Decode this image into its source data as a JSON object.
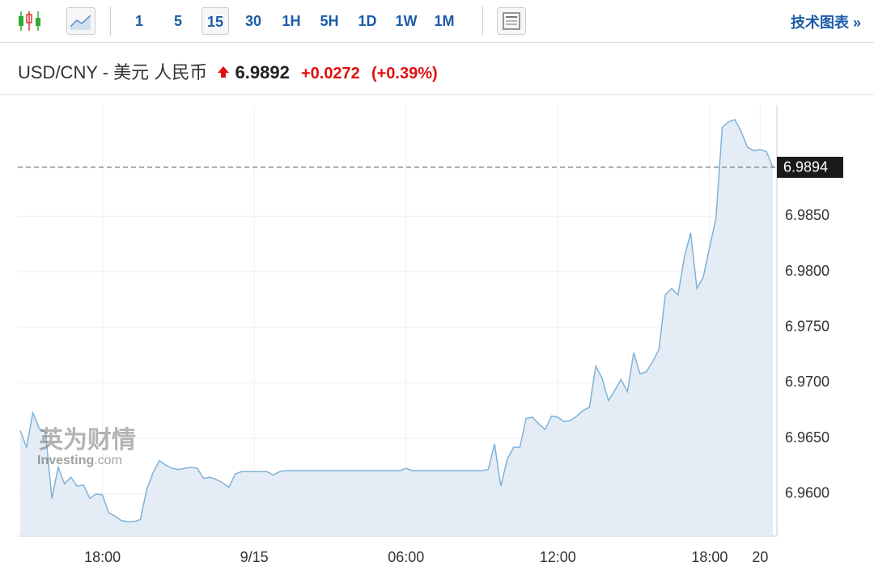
{
  "toolbar": {
    "intervals": [
      "1",
      "5",
      "15",
      "30",
      "1H",
      "5H",
      "1D",
      "1W",
      "1M"
    ],
    "selected": "15",
    "link": "技术图表 »"
  },
  "header": {
    "pair": "USD/CNY - 美元 人民币",
    "price": "6.9892",
    "change": "+0.0272",
    "change_pct": "(+0.39%)"
  },
  "watermark": {
    "brand": "英为财情",
    "site": "Investing",
    "domain": ".com"
  },
  "chart_data": {
    "type": "area",
    "color": "#7fb2d8",
    "fill": "#e4edf6",
    "values": [
      6.9657,
      6.9642,
      6.9673,
      6.9659,
      6.9655,
      6.9596,
      6.9624,
      6.9609,
      6.9615,
      6.9607,
      6.9608,
      6.9596,
      6.96,
      6.9599,
      6.9583,
      6.958,
      6.9576,
      6.9575,
      6.9575,
      6.9577,
      6.9604,
      6.9619,
      6.963,
      6.9626,
      6.9623,
      6.9622,
      6.9623,
      6.9624,
      6.9623,
      6.9614,
      6.9615,
      6.9613,
      6.961,
      6.9606,
      6.9618,
      6.962,
      6.962,
      6.962,
      6.962,
      6.962,
      6.9617,
      6.962,
      6.9621,
      6.9621,
      6.9621,
      6.9621,
      6.9621,
      6.9621,
      6.9621,
      6.9621,
      6.9621,
      6.9621,
      6.9621,
      6.9621,
      6.9621,
      6.9621,
      6.9621,
      6.9621,
      6.9621,
      6.9621,
      6.9621,
      6.9623,
      6.9621,
      6.9621,
      6.9621,
      6.9621,
      6.9621,
      6.9621,
      6.9621,
      6.9621,
      6.9621,
      6.9621,
      6.9621,
      6.9621,
      6.9622,
      6.9645,
      6.9607,
      6.9631,
      6.9642,
      6.9642,
      6.9668,
      6.9669,
      6.9663,
      6.9658,
      6.967,
      6.9669,
      6.9665,
      6.9666,
      6.967,
      6.9675,
      6.9678,
      6.9715,
      6.9704,
      6.9684,
      6.9693,
      6.9703,
      6.9692,
      6.9727,
      6.9708,
      6.971,
      6.9719,
      6.973,
      6.9779,
      6.9785,
      6.9779,
      6.9813,
      6.9835,
      6.9785,
      6.9795,
      6.9822,
      6.9848,
      6.993,
      6.9935,
      6.9937,
      6.9926,
      6.9912,
      6.9909,
      6.991,
      6.9908,
      6.9894
    ],
    "ylim": [
      6.9562,
      6.995
    ],
    "yticks": [
      {
        "value": 6.96,
        "label": "6.9600"
      },
      {
        "value": 6.965,
        "label": "6.9650"
      },
      {
        "value": 6.97,
        "label": "6.9700"
      },
      {
        "value": 6.975,
        "label": "6.9750"
      },
      {
        "value": 6.98,
        "label": "6.9800"
      },
      {
        "value": 6.985,
        "label": "6.9850"
      }
    ],
    "xticks": [
      {
        "value": 13,
        "label": "18:00"
      },
      {
        "value": 37,
        "label": "9/15"
      },
      {
        "value": 61,
        "label": "06:00"
      },
      {
        "value": 85,
        "label": "12:00"
      },
      {
        "value": 109,
        "label": "18:00"
      },
      {
        "value": 117,
        "label": "20"
      }
    ],
    "reference_line": {
      "value": 6.9894,
      "label": "6.9894"
    },
    "grid": true
  }
}
